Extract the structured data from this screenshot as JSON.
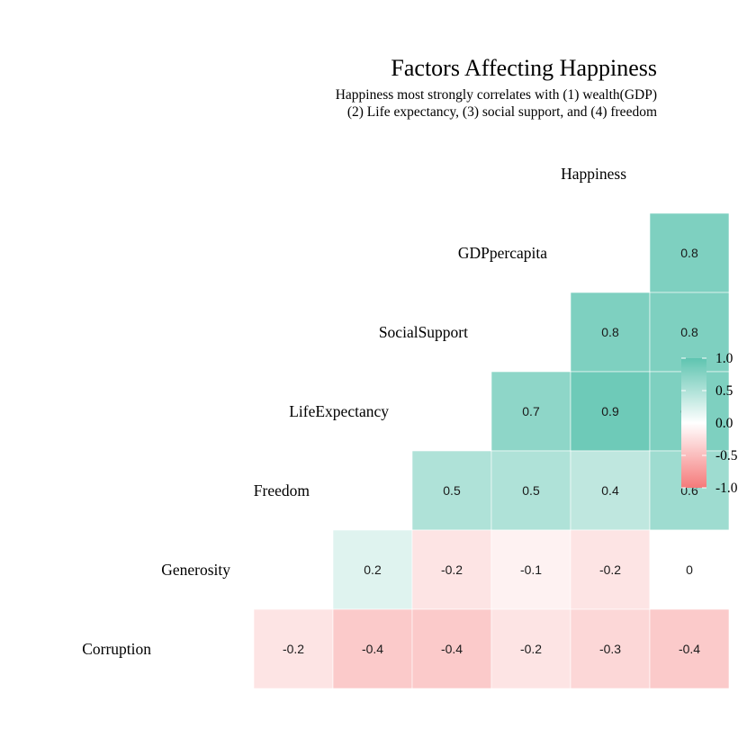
{
  "chart_data": {
    "type": "heatmap",
    "title": "Factors Affecting Happiness",
    "subtitle": [
      "Happiness most strongly correlates with (1) wealth(GDP)",
      "(2) Life expectancy, (3) social support, and (4) freedom"
    ],
    "variables": [
      "Corruption",
      "Generosity",
      "Freedom",
      "LifeExpectancy",
      "SocialSupport",
      "GDPpercapita",
      "Happiness"
    ],
    "cells": [
      {
        "row": "GDPpercapita",
        "col": "Happiness",
        "value": 0.8,
        "label": "0.8"
      },
      {
        "row": "SocialSupport",
        "col": "GDPpercapita",
        "value": 0.8,
        "label": "0.8"
      },
      {
        "row": "SocialSupport",
        "col": "Happiness",
        "value": 0.8,
        "label": "0.8"
      },
      {
        "row": "LifeExpectancy",
        "col": "SocialSupport",
        "value": 0.7,
        "label": "0.7"
      },
      {
        "row": "LifeExpectancy",
        "col": "GDPpercapita",
        "value": 0.9,
        "label": "0.9"
      },
      {
        "row": "LifeExpectancy",
        "col": "Happiness",
        "value": 0.8,
        "label": "0.8"
      },
      {
        "row": "Freedom",
        "col": "LifeExpectancy",
        "value": 0.5,
        "label": "0.5"
      },
      {
        "row": "Freedom",
        "col": "SocialSupport",
        "value": 0.5,
        "label": "0.5"
      },
      {
        "row": "Freedom",
        "col": "GDPpercapita",
        "value": 0.4,
        "label": "0.4"
      },
      {
        "row": "Freedom",
        "col": "Happiness",
        "value": 0.6,
        "label": "0.6"
      },
      {
        "row": "Generosity",
        "col": "Freedom",
        "value": 0.2,
        "label": "0.2"
      },
      {
        "row": "Generosity",
        "col": "LifeExpectancy",
        "value": -0.2,
        "label": "-0.2"
      },
      {
        "row": "Generosity",
        "col": "SocialSupport",
        "value": -0.1,
        "label": "-0.1"
      },
      {
        "row": "Generosity",
        "col": "GDPpercapita",
        "value": -0.2,
        "label": "-0.2"
      },
      {
        "row": "Generosity",
        "col": "Happiness",
        "value": 0.0,
        "label": "0"
      },
      {
        "row": "Corruption",
        "col": "Generosity",
        "value": -0.2,
        "label": "-0.2"
      },
      {
        "row": "Corruption",
        "col": "Freedom",
        "value": -0.4,
        "label": "-0.4"
      },
      {
        "row": "Corruption",
        "col": "LifeExpectancy",
        "value": -0.4,
        "label": "-0.4"
      },
      {
        "row": "Corruption",
        "col": "SocialSupport",
        "value": -0.2,
        "label": "-0.2"
      },
      {
        "row": "Corruption",
        "col": "GDPpercapita",
        "value": -0.3,
        "label": "-0.3"
      },
      {
        "row": "Corruption",
        "col": "Happiness",
        "value": -0.4,
        "label": "-0.4"
      }
    ],
    "legend": {
      "ticks": [
        "1.0",
        "0.5",
        "0.0",
        "-0.5",
        "-1.0"
      ],
      "placement": "right",
      "range": [
        -1.0,
        1.0
      ]
    },
    "colors": {
      "high": "#5ec4b0",
      "mid": "#ffffff",
      "low": "#f57a7a"
    }
  }
}
